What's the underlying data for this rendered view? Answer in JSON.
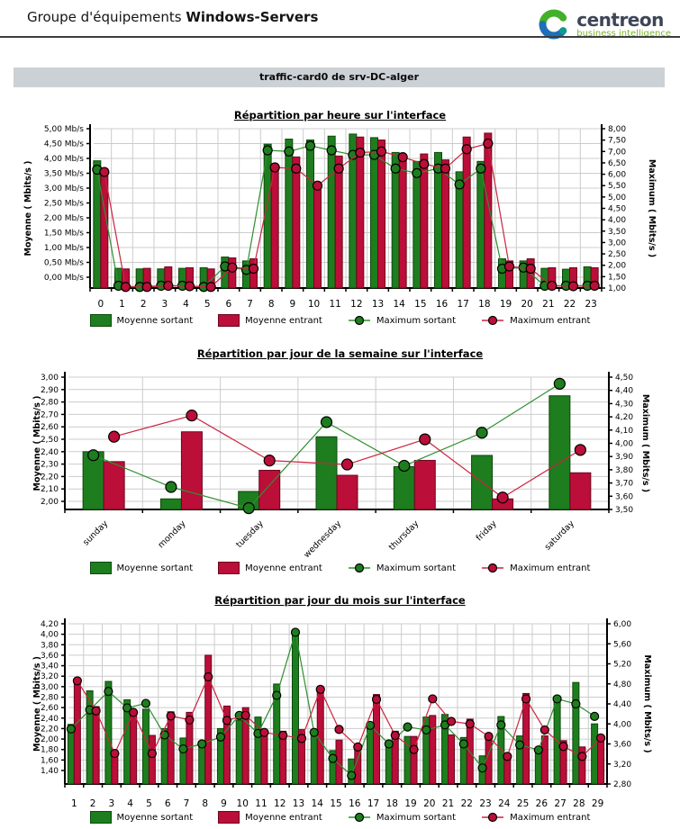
{
  "header": {
    "title_prefix": "Groupe d'équipements",
    "title_bold": "Windows-Servers",
    "logo": {
      "brand": "centreon",
      "sub": "business intelligence",
      "arc_top_color": "#43b02a",
      "arc_bottom_color": "#1d6fb7"
    }
  },
  "section": {
    "title": "traffic-card0 de srv-DC-alger"
  },
  "colors": {
    "bar_sortant": "#1e7d1e",
    "bar_sortant_border": "#0c4a0c",
    "bar_entrant": "#bb0e38",
    "bar_entrant_border": "#6b0720",
    "line_sortant": "#2f8f2f",
    "line_entrant": "#cc2440",
    "grid": "#cccccc",
    "axis": "#000000"
  },
  "legend": {
    "items": [
      {
        "label": "Moyenne sortant",
        "type": "bar",
        "color": "#1e7d1e",
        "border": "#0c4a0c"
      },
      {
        "label": "Moyenne entrant",
        "type": "bar",
        "color": "#bb0e38",
        "border": "#6b0720"
      },
      {
        "label": "Maximum sortant",
        "type": "line",
        "color": "#2f8f2f",
        "dot": "#1e7d1e"
      },
      {
        "label": "Maximum entrant",
        "type": "line",
        "color": "#cc2440",
        "dot": "#bb0e38"
      }
    ]
  },
  "chart_data": [
    {
      "type": "bar+line",
      "title": "Répartition par heure sur l'interface",
      "left_axis": {
        "label": "Moyenne ( Mbits/s )",
        "min": 0.0,
        "max": 5.0,
        "step": 0.5,
        "suffix": " Mb/s",
        "decimals": 2
      },
      "right_axis": {
        "label": "Maximum ( Mbits/s )",
        "min": 1.0,
        "max": 8.0,
        "step": 0.5,
        "decimals": 2
      },
      "categories": [
        "0",
        "1",
        "2",
        "3",
        "4",
        "5",
        "6",
        "7",
        "8",
        "9",
        "10",
        "11",
        "12",
        "13",
        "14",
        "15",
        "16",
        "17",
        "18",
        "19",
        "20",
        "21",
        "22",
        "23"
      ],
      "series": [
        {
          "name": "Moyenne sortant",
          "type": "bar",
          "axis": "left",
          "values": [
            3.92,
            0.3,
            0.28,
            0.28,
            0.3,
            0.32,
            0.68,
            0.55,
            4.48,
            4.65,
            4.62,
            4.75,
            4.82,
            4.7,
            4.2,
            3.9,
            4.2,
            3.55,
            3.9,
            0.62,
            0.55,
            0.3,
            0.27,
            0.35
          ]
        },
        {
          "name": "Moyenne entrant",
          "type": "bar",
          "axis": "left",
          "values": [
            3.65,
            0.28,
            0.3,
            0.35,
            0.32,
            0.28,
            0.65,
            0.62,
            3.62,
            4.05,
            3.18,
            4.08,
            4.72,
            4.62,
            3.95,
            4.15,
            3.95,
            4.72,
            4.85,
            0.55,
            0.62,
            0.32,
            0.32,
            0.32
          ]
        },
        {
          "name": "Maximum sortant",
          "type": "line",
          "axis": "right",
          "values": [
            6.2,
            1.1,
            1.05,
            1.1,
            1.1,
            1.05,
            1.95,
            1.8,
            7.05,
            7.0,
            7.25,
            7.05,
            6.85,
            6.85,
            6.25,
            6.05,
            6.25,
            5.55,
            6.25,
            1.85,
            1.9,
            1.1,
            1.1,
            1.1
          ]
        },
        {
          "name": "Maximum entrant",
          "type": "line",
          "axis": "right",
          "values": [
            6.1,
            1.05,
            1.05,
            1.1,
            1.08,
            1.05,
            1.9,
            1.85,
            6.3,
            6.25,
            5.5,
            6.25,
            6.95,
            7.0,
            6.75,
            6.45,
            6.25,
            7.1,
            7.35,
            1.95,
            1.85,
            1.1,
            1.08,
            1.1
          ]
        }
      ],
      "x_label_rotation": 0,
      "grid": true,
      "legend_position": "bottom"
    },
    {
      "type": "bar+line",
      "title": "Répartition par jour de la semaine sur l'interface",
      "left_axis": {
        "label": "Moyenne ( Mbits/s )",
        "min": 2.0,
        "max": 3.0,
        "step": 0.1,
        "suffix": "",
        "decimals": 2
      },
      "right_axis": {
        "label": "Maximum ( Mbits/s )",
        "min": 3.5,
        "max": 4.5,
        "step": 0.1,
        "decimals": 2
      },
      "categories": [
        "sunday",
        "monday",
        "tuesday",
        "wednesday",
        "thursday",
        "friday",
        "saturday"
      ],
      "series": [
        {
          "name": "Moyenne sortant",
          "type": "bar",
          "axis": "left",
          "values": [
            2.4,
            2.02,
            2.08,
            2.52,
            2.28,
            2.37,
            2.85
          ]
        },
        {
          "name": "Moyenne entrant",
          "type": "bar",
          "axis": "left",
          "values": [
            2.32,
            2.56,
            2.25,
            2.21,
            2.33,
            2.02,
            2.23
          ]
        },
        {
          "name": "Maximum sortant",
          "type": "line",
          "axis": "right",
          "values": [
            3.91,
            3.67,
            3.51,
            4.16,
            3.83,
            4.08,
            4.45
          ]
        },
        {
          "name": "Maximum entrant",
          "type": "line",
          "axis": "right",
          "values": [
            4.05,
            4.21,
            3.87,
            3.84,
            4.03,
            3.59,
            3.95
          ]
        }
      ],
      "x_label_rotation": -45,
      "grid": true,
      "legend_position": "bottom"
    },
    {
      "type": "bar+line",
      "title": "Répartition par jour du mois sur l'interface",
      "left_axis": {
        "label": "Moyenne ( Mbits/s )",
        "min": 1.4,
        "max": 4.2,
        "step": 0.2,
        "suffix": "",
        "decimals": 2
      },
      "right_axis": {
        "label": "Maximum ( Mbits/s )",
        "min": 2.8,
        "max": 6.0,
        "step": 0.4,
        "decimals": 2
      },
      "categories": [
        "1",
        "2",
        "3",
        "4",
        "5",
        "6",
        "7",
        "8",
        "9",
        "10",
        "11",
        "12",
        "13",
        "14",
        "15",
        "16",
        "17",
        "18",
        "19",
        "20",
        "21",
        "22",
        "23",
        "24",
        "25",
        "26",
        "27",
        "28",
        "29"
      ],
      "series": [
        {
          "name": "Moyenne sortant",
          "type": "bar",
          "axis": "left",
          "values": [
            2.28,
            2.92,
            3.1,
            2.75,
            2.57,
            2.2,
            2.02,
            1.96,
            2.2,
            2.36,
            2.42,
            3.05,
            4.02,
            2.18,
            1.78,
            1.62,
            2.32,
            1.92,
            2.05,
            2.42,
            2.47,
            2.03,
            1.68,
            2.43,
            2.06,
            1.77,
            2.82,
            3.08,
            2.29
          ]
        },
        {
          "name": "Moyenne entrant",
          "type": "bar",
          "axis": "left",
          "values": [
            3.12,
            2.62,
            1.72,
            2.47,
            2.07,
            2.52,
            2.51,
            3.6,
            2.63,
            2.6,
            2.12,
            2.15,
            2.18,
            2.92,
            1.98,
            1.85,
            2.85,
            2.15,
            2.05,
            2.45,
            2.08,
            2.38,
            2.06,
            1.71,
            2.87,
            2.06,
            1.97,
            1.85,
            2.03
          ]
        },
        {
          "name": "Maximum sortant",
          "type": "line",
          "axis": "right",
          "values": [
            3.9,
            4.28,
            4.65,
            4.32,
            4.41,
            3.78,
            3.5,
            3.6,
            3.74,
            4.17,
            3.81,
            4.57,
            5.83,
            3.83,
            3.31,
            2.97,
            3.97,
            3.6,
            3.94,
            3.88,
            3.98,
            3.6,
            3.12,
            3.98,
            3.58,
            3.48,
            4.5,
            4.4,
            4.15
          ]
        },
        {
          "name": "Maximum entrant",
          "type": "line",
          "axis": "right",
          "values": [
            4.86,
            4.26,
            3.41,
            4.23,
            3.41,
            4.16,
            4.08,
            4.94,
            4.07,
            4.17,
            3.83,
            3.77,
            3.71,
            4.69,
            3.89,
            3.54,
            4.49,
            3.77,
            3.49,
            4.5,
            4.05,
            4.0,
            3.75,
            3.35,
            4.5,
            3.88,
            3.55,
            3.35,
            3.72
          ]
        }
      ],
      "x_label_rotation": 0,
      "grid": true,
      "legend_position": "bottom"
    }
  ]
}
